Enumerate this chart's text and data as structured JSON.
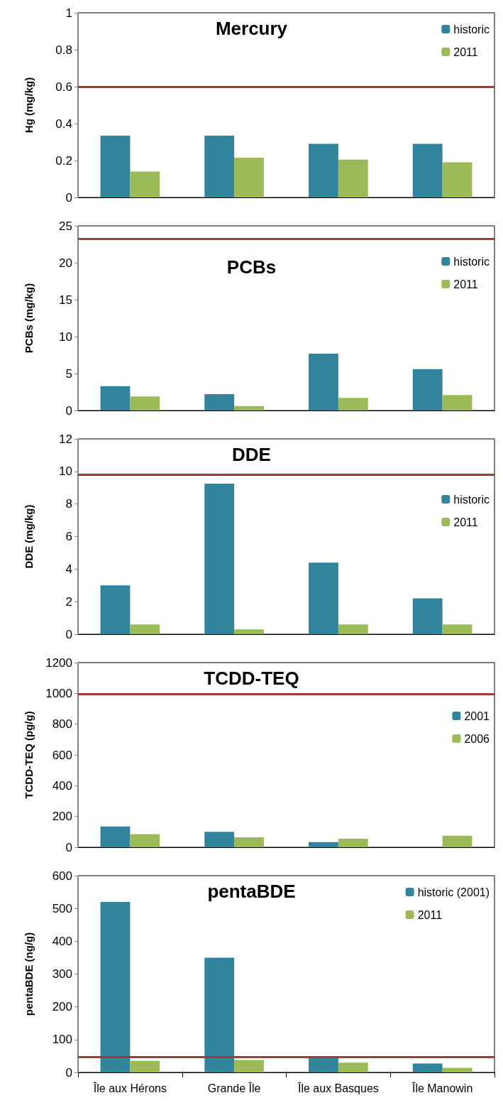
{
  "chart_data": [
    {
      "type": "bar",
      "title": "Mercury",
      "ylabel": "Hg (mg/kg)",
      "categories": [
        null,
        null,
        null,
        null
      ],
      "tick_labels": "y",
      "ylim": [
        0,
        1
      ],
      "yticks": [
        0,
        0.2,
        0.4,
        0.6,
        0.8,
        1
      ],
      "legend": "top right",
      "grid": false,
      "series": [
        {
          "name": "historic",
          "color": "#31849b",
          "values": [
            0.335,
            0.335,
            0.29,
            0.29
          ]
        },
        {
          "name": "2011",
          "color": "#9bbb59",
          "values": [
            0.14,
            0.215,
            0.205,
            0.19
          ]
        }
      ],
      "ref_lines": [
        {
          "axis": "y",
          "value": 0.6,
          "color": "#a0393a"
        }
      ]
    },
    {
      "type": "bar",
      "title": "PCBs",
      "ylabel": "PCBs (mg/kg)",
      "categories": [
        null,
        null,
        null,
        null
      ],
      "tick_labels": "y",
      "ylim": [
        0,
        25
      ],
      "yticks": [
        0,
        5,
        10,
        15,
        20,
        25
      ],
      "legend": "top right",
      "grid": false,
      "series": [
        {
          "name": "historic",
          "color": "#31849b",
          "values": [
            3.3,
            2.2,
            7.7,
            5.6
          ]
        },
        {
          "name": "2011",
          "color": "#9bbb59",
          "values": [
            1.9,
            0.6,
            1.7,
            2.1
          ]
        }
      ],
      "ref_lines": [
        {
          "axis": "y",
          "value": 23.2,
          "color": "#a0393a"
        }
      ]
    },
    {
      "type": "bar",
      "title": "DDE",
      "ylabel": "DDE (mg/kg)",
      "categories": [
        null,
        null,
        null,
        null
      ],
      "tick_labels": "y",
      "ylim": [
        0,
        12
      ],
      "yticks": [
        0,
        2,
        4,
        6,
        8,
        10,
        12
      ],
      "legend": "top right",
      "grid": false,
      "series": [
        {
          "name": "historic",
          "color": "#31849b",
          "values": [
            3.0,
            9.25,
            4.4,
            2.2
          ]
        },
        {
          "name": "2011",
          "color": "#9bbb59",
          "values": [
            0.6,
            0.3,
            0.6,
            0.6
          ]
        }
      ],
      "ref_lines": [
        {
          "axis": "y",
          "value": 9.8,
          "color": "#a0393a"
        }
      ]
    },
    {
      "type": "bar",
      "title": "TCDD-TEQ",
      "ylabel": "TCDD-TEQ (pg/g)",
      "categories": [
        null,
        null,
        null,
        null
      ],
      "tick_labels": "y",
      "ylim": [
        0,
        1200
      ],
      "yticks": [
        0,
        200,
        400,
        600,
        800,
        1000,
        1200
      ],
      "legend": "top right",
      "grid": false,
      "series": [
        {
          "name": "2001",
          "color": "#31849b",
          "values": [
            135,
            100,
            33,
            null
          ]
        },
        {
          "name": "2006",
          "color": "#9bbb59",
          "values": [
            85,
            65,
            55,
            75
          ]
        }
      ],
      "ref_lines": [
        {
          "axis": "y",
          "value": 995,
          "color": "#a0393a"
        }
      ]
    },
    {
      "type": "bar",
      "title": "pentaBDE",
      "ylabel": "pentaBDE (ng/g)",
      "categories": [
        "Île aux Hérons",
        "Grande Île",
        "Île aux Basques",
        "Île Manowin"
      ],
      "ylim": [
        0,
        600
      ],
      "yticks": [
        0,
        100,
        200,
        300,
        400,
        500,
        600
      ],
      "legend": "top right",
      "grid": false,
      "series": [
        {
          "name": "historic (2001)",
          "color": "#31849b",
          "values": [
            520,
            350,
            45,
            27
          ]
        },
        {
          "name": "2011",
          "color": "#9bbb59",
          "values": [
            35,
            38,
            30,
            14
          ]
        }
      ],
      "ref_lines": [
        {
          "axis": "y",
          "value": 48,
          "color": "#a0393a"
        }
      ]
    }
  ]
}
